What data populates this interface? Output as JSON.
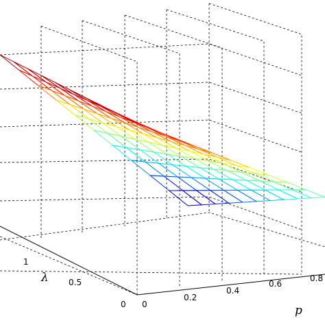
{
  "chart_data": {
    "type": "surface",
    "colormap": "jet",
    "render_style": "mesh",
    "grid": true,
    "xlabel": "p",
    "ylabel": "λ",
    "x_ticks": [
      "0",
      "0.2",
      "0.4",
      "0.6",
      "0.8"
    ],
    "y_ticks": [
      "0",
      "0.5",
      "1"
    ],
    "xlim": [
      0,
      1
    ],
    "ylim": [
      0,
      1.5
    ],
    "description_of_surface": "surface highest along p near 0, dropping toward larger p; steepest drop at larger lambda",
    "p_values": [
      0,
      0.1,
      0.2,
      0.3,
      0.4,
      0.5,
      0.6,
      0.7,
      0.8,
      0.9,
      1.0
    ],
    "lambda_values": [
      0,
      0.15,
      0.3,
      0.45,
      0.6,
      0.75,
      0.9,
      1.05,
      1.2,
      1.35,
      1.5
    ]
  }
}
